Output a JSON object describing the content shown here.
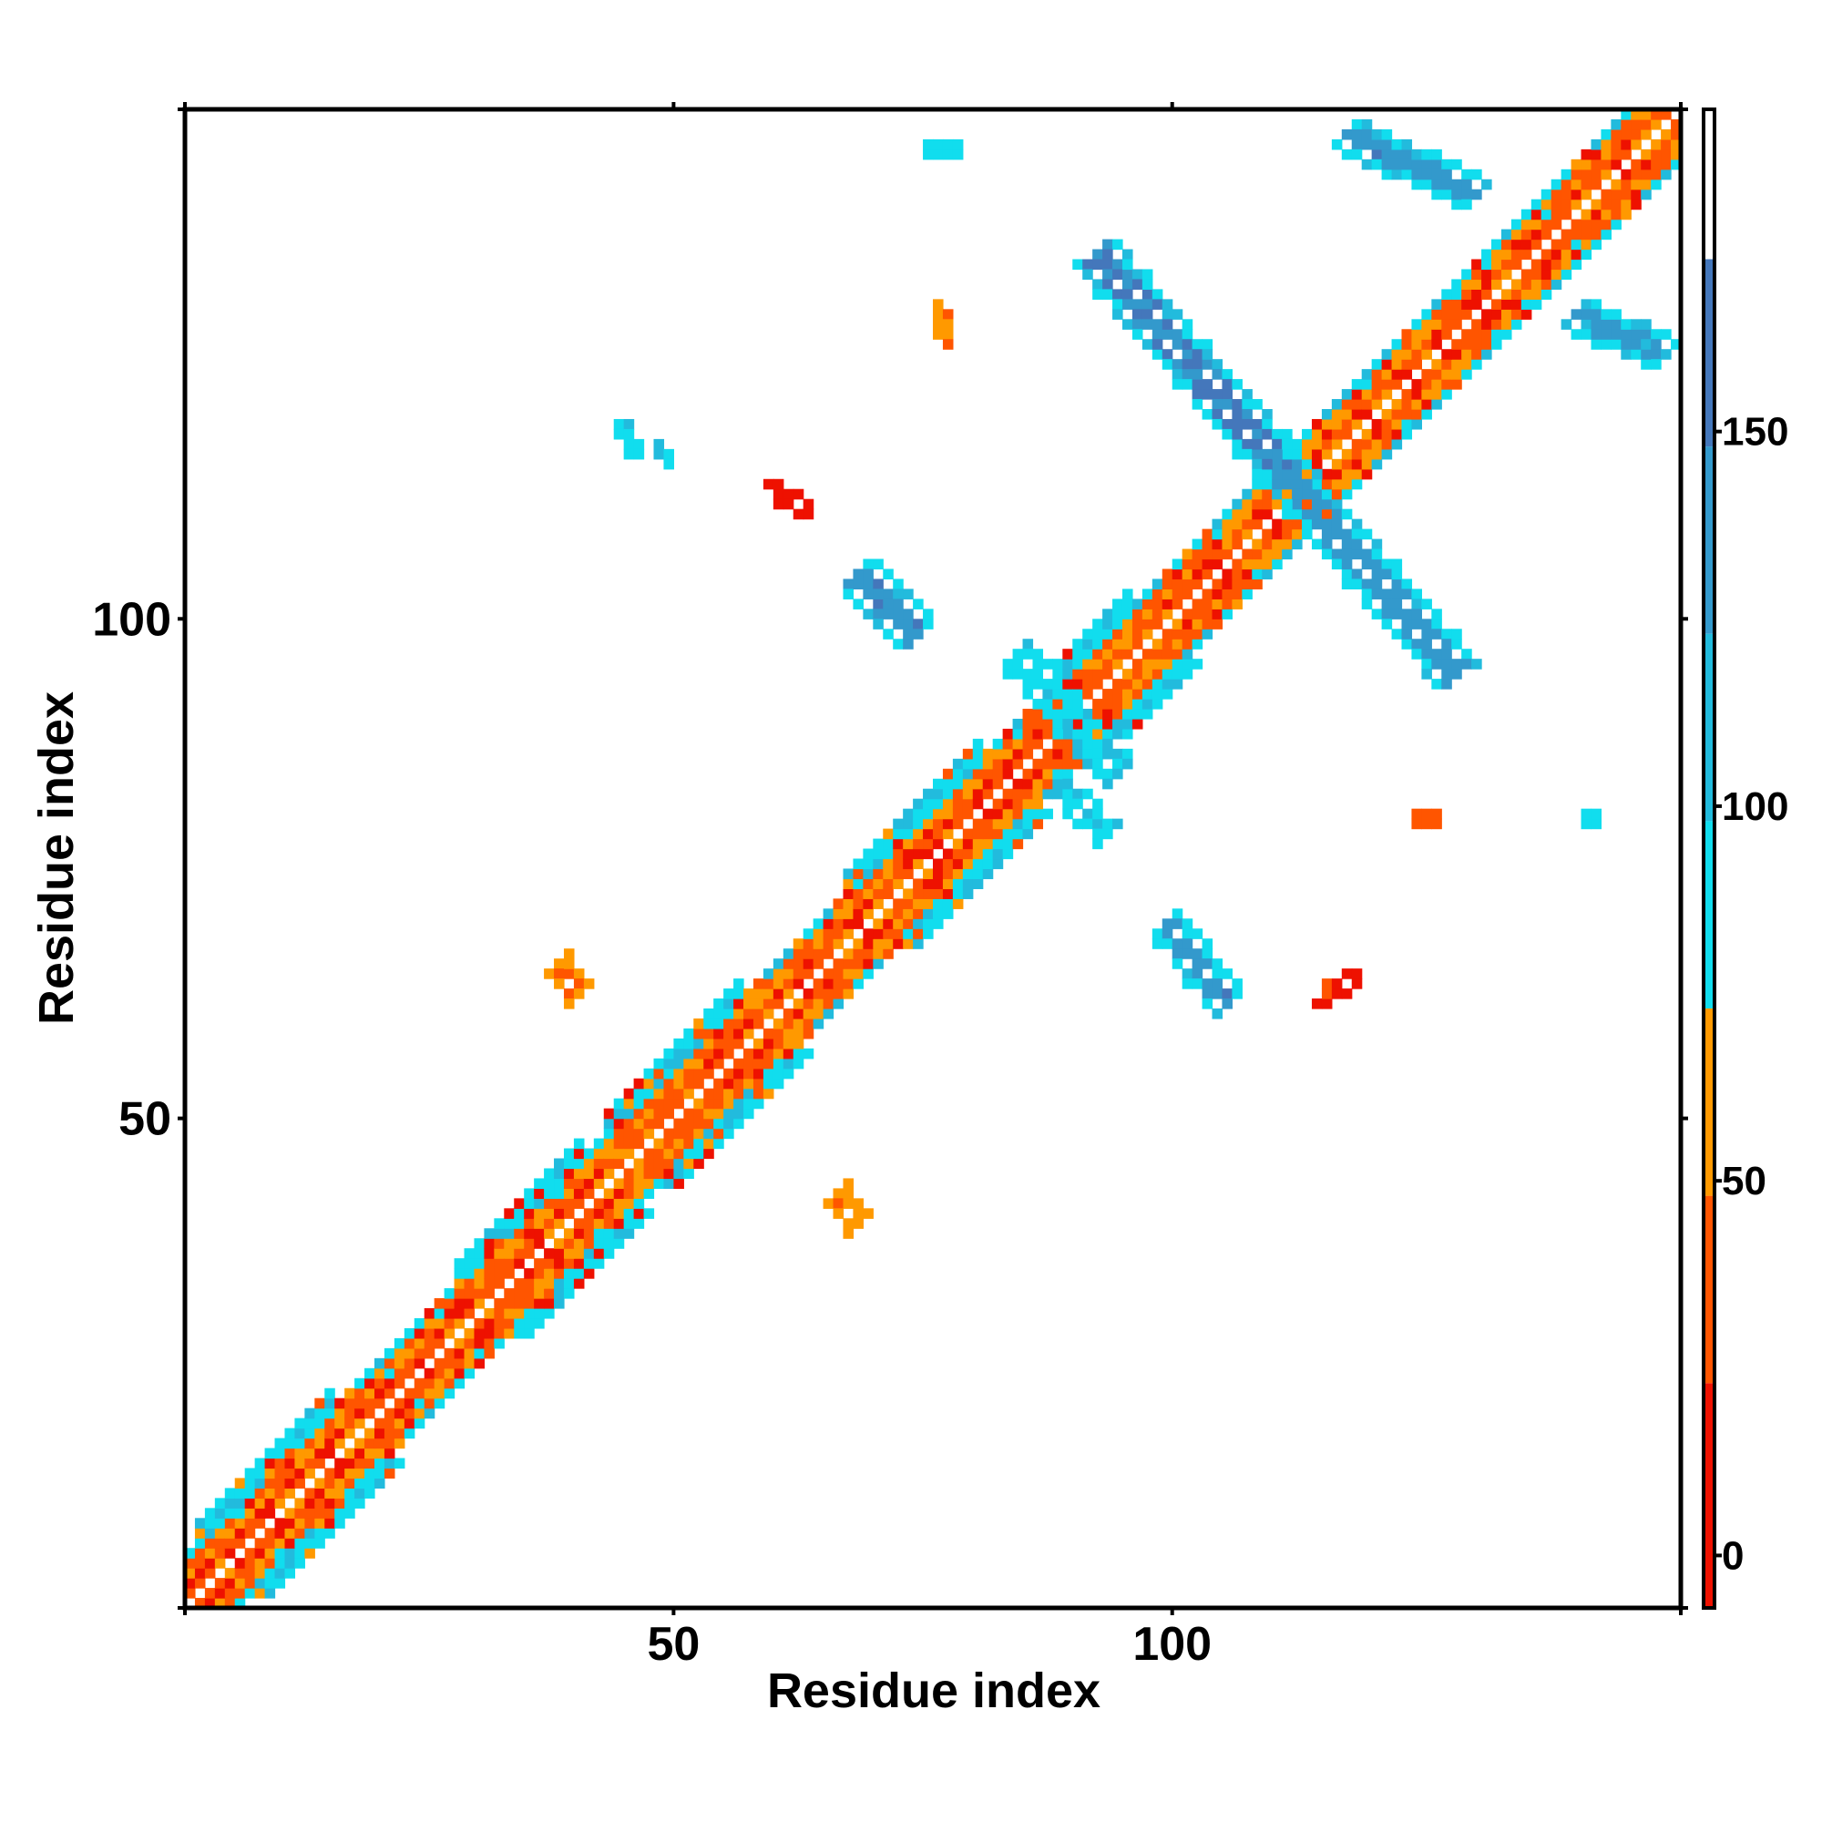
{
  "chart_data": {
    "type": "heatmap",
    "title": "",
    "xlabel": "Residue index",
    "ylabel": "Residue index",
    "xlim": [
      1,
      151
    ],
    "ylim": [
      1,
      151
    ],
    "x_ticks": [
      50,
      100
    ],
    "y_ticks": [
      50,
      100
    ],
    "grid": false,
    "colorbar": {
      "ticks": [
        0,
        50,
        100,
        150
      ],
      "range": [
        -7,
        193
      ],
      "bands": [
        {
          "from": -7,
          "to": 23,
          "color": "#ee1100"
        },
        {
          "from": 23,
          "to": 48,
          "color": "#ff5500"
        },
        {
          "from": 48,
          "to": 73,
          "color": "#ff9900"
        },
        {
          "from": 73,
          "to": 98,
          "color": "#11ddee"
        },
        {
          "from": 98,
          "to": 123,
          "color": "#22bbdd"
        },
        {
          "from": 123,
          "to": 148,
          "color": "#3399cc"
        },
        {
          "from": 148,
          "to": 173,
          "color": "#4477bb"
        },
        {
          "from": 173,
          "to": 193,
          "color": "#ffffff"
        }
      ]
    },
    "diagonal": {
      "from": 1,
      "to": 150,
      "band_width": 5
    },
    "diagonal_widenings": [
      {
        "from": 2,
        "to": 15,
        "width": 7
      },
      {
        "from": 28,
        "to": 40,
        "width": 7
      },
      {
        "from": 43,
        "to": 56,
        "width": 7
      },
      {
        "from": 67,
        "to": 80,
        "width": 7
      },
      {
        "from": 88,
        "to": 95,
        "width": 7
      }
    ],
    "contact_patches": [
      {
        "x1": 68,
        "y1": 104,
        "x2": 74,
        "y2": 98,
        "width": 5,
        "value": 140
      },
      {
        "x1": 92,
        "y1": 136,
        "x2": 111,
        "y2": 114,
        "width": 5,
        "value": 150
      },
      {
        "x1": 111,
        "y1": 114,
        "x2": 128,
        "y2": 94,
        "width": 5,
        "value": 135
      },
      {
        "x1": 117,
        "y1": 148,
        "x2": 130,
        "y2": 142,
        "width": 4,
        "value": 140
      },
      {
        "x1": 140,
        "y1": 130,
        "x2": 149,
        "y2": 126,
        "width": 4,
        "value": 130
      },
      {
        "x1": 99,
        "y1": 69,
        "x2": 105,
        "y2": 61,
        "width": 4,
        "value": 140
      },
      {
        "x1": 84,
        "y1": 96,
        "x2": 94,
        "y2": 84,
        "width": 4,
        "value": 92
      },
      {
        "x1": 88,
        "y1": 83,
        "x2": 93,
        "y2": 78,
        "width": 3,
        "value": 95
      },
      {
        "x1": 38,
        "y1": 65,
        "x2": 40,
        "y2": 62,
        "width": 3,
        "value": 55
      },
      {
        "x1": 66,
        "y1": 42,
        "x2": 68,
        "y2": 39,
        "width": 3,
        "value": 55
      },
      {
        "x1": 59,
        "y1": 113,
        "x2": 63,
        "y2": 110,
        "width": 2,
        "value": 10
      },
      {
        "x1": 114,
        "y1": 61,
        "x2": 118,
        "y2": 64,
        "width": 2,
        "value": 20
      },
      {
        "x1": 75,
        "y1": 146,
        "x2": 78,
        "y2": 146,
        "width": 2,
        "value": 85
      },
      {
        "x1": 44,
        "y1": 119,
        "x2": 46,
        "y2": 116,
        "width": 2,
        "value": 110
      },
      {
        "x1": 48,
        "y1": 117,
        "x2": 49,
        "y2": 115,
        "width": 2,
        "value": 105
      },
      {
        "x1": 76,
        "y1": 131,
        "x2": 77,
        "y2": 127,
        "width": 2,
        "value": 50
      },
      {
        "x1": 124,
        "y1": 79,
        "x2": 126,
        "y2": 79,
        "width": 2,
        "value": 40
      },
      {
        "x1": 141,
        "y1": 79,
        "x2": 142,
        "y2": 79,
        "width": 2,
        "value": 120
      }
    ]
  }
}
